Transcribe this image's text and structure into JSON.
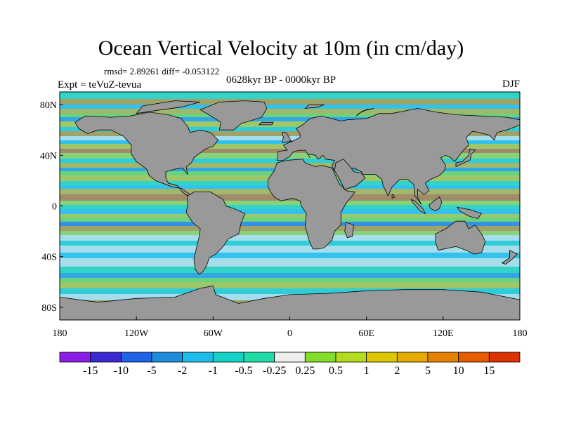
{
  "figure": {
    "title": "Ocean Vertical Velocity at 10m (in cm/day)",
    "stats": "rmsd= 2.89261 diff= -0.053122",
    "period": "0628kyr BP - 0000kyr BP",
    "experiment": "Expt = teVuZ-tevua",
    "season": "DJF"
  },
  "map": {
    "lat_ticks": [
      {
        "label": "80N",
        "lat": 80
      },
      {
        "label": "40N",
        "lat": 40
      },
      {
        "label": "0",
        "lat": 0
      },
      {
        "label": "40S",
        "lat": -40
      },
      {
        "label": "80S",
        "lat": -80
      }
    ],
    "lon_ticks": [
      {
        "label": "180",
        "lon": -180
      },
      {
        "label": "120W",
        "lon": -120
      },
      {
        "label": "60W",
        "lon": -60
      },
      {
        "label": "0",
        "lon": 0
      },
      {
        "label": "60E",
        "lon": 60
      },
      {
        "label": "120E",
        "lon": 120
      },
      {
        "label": "180",
        "lon": 180
      }
    ],
    "land_color": "#999999"
  },
  "colorbar": {
    "labels": [
      "-15",
      "-10",
      "-5",
      "-2",
      "-1",
      "-0.5",
      "-0.25",
      "0.25",
      "0.5",
      "1",
      "2",
      "5",
      "10",
      "15"
    ],
    "colors": [
      "#8a1ee6",
      "#3c28d2",
      "#1e64e6",
      "#1e8cdc",
      "#1ebeeb",
      "#14d2c8",
      "#1edcaa",
      "#eeeeee",
      "#82dc28",
      "#b4dc1e",
      "#dcc800",
      "#e6aa00",
      "#e68200",
      "#e65a00",
      "#dc3200"
    ]
  }
}
